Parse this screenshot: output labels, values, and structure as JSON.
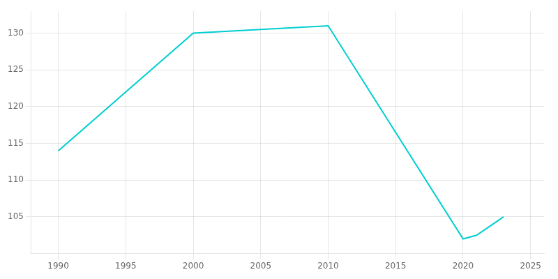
{
  "chart_data": {
    "type": "line",
    "x": [
      1990,
      2000,
      2005,
      2010,
      2020,
      2021,
      2023
    ],
    "values": [
      114.0,
      130.0,
      130.5,
      131.0,
      102.0,
      102.5,
      105.0
    ],
    "color": "#00CED1",
    "xlim": [
      1988,
      2026
    ],
    "ylim": [
      100,
      133
    ],
    "xticks": [
      1990,
      1995,
      2000,
      2005,
      2010,
      2015,
      2020,
      2025
    ],
    "yticks": [
      105,
      110,
      115,
      120,
      125,
      130
    ],
    "grid": true
  }
}
